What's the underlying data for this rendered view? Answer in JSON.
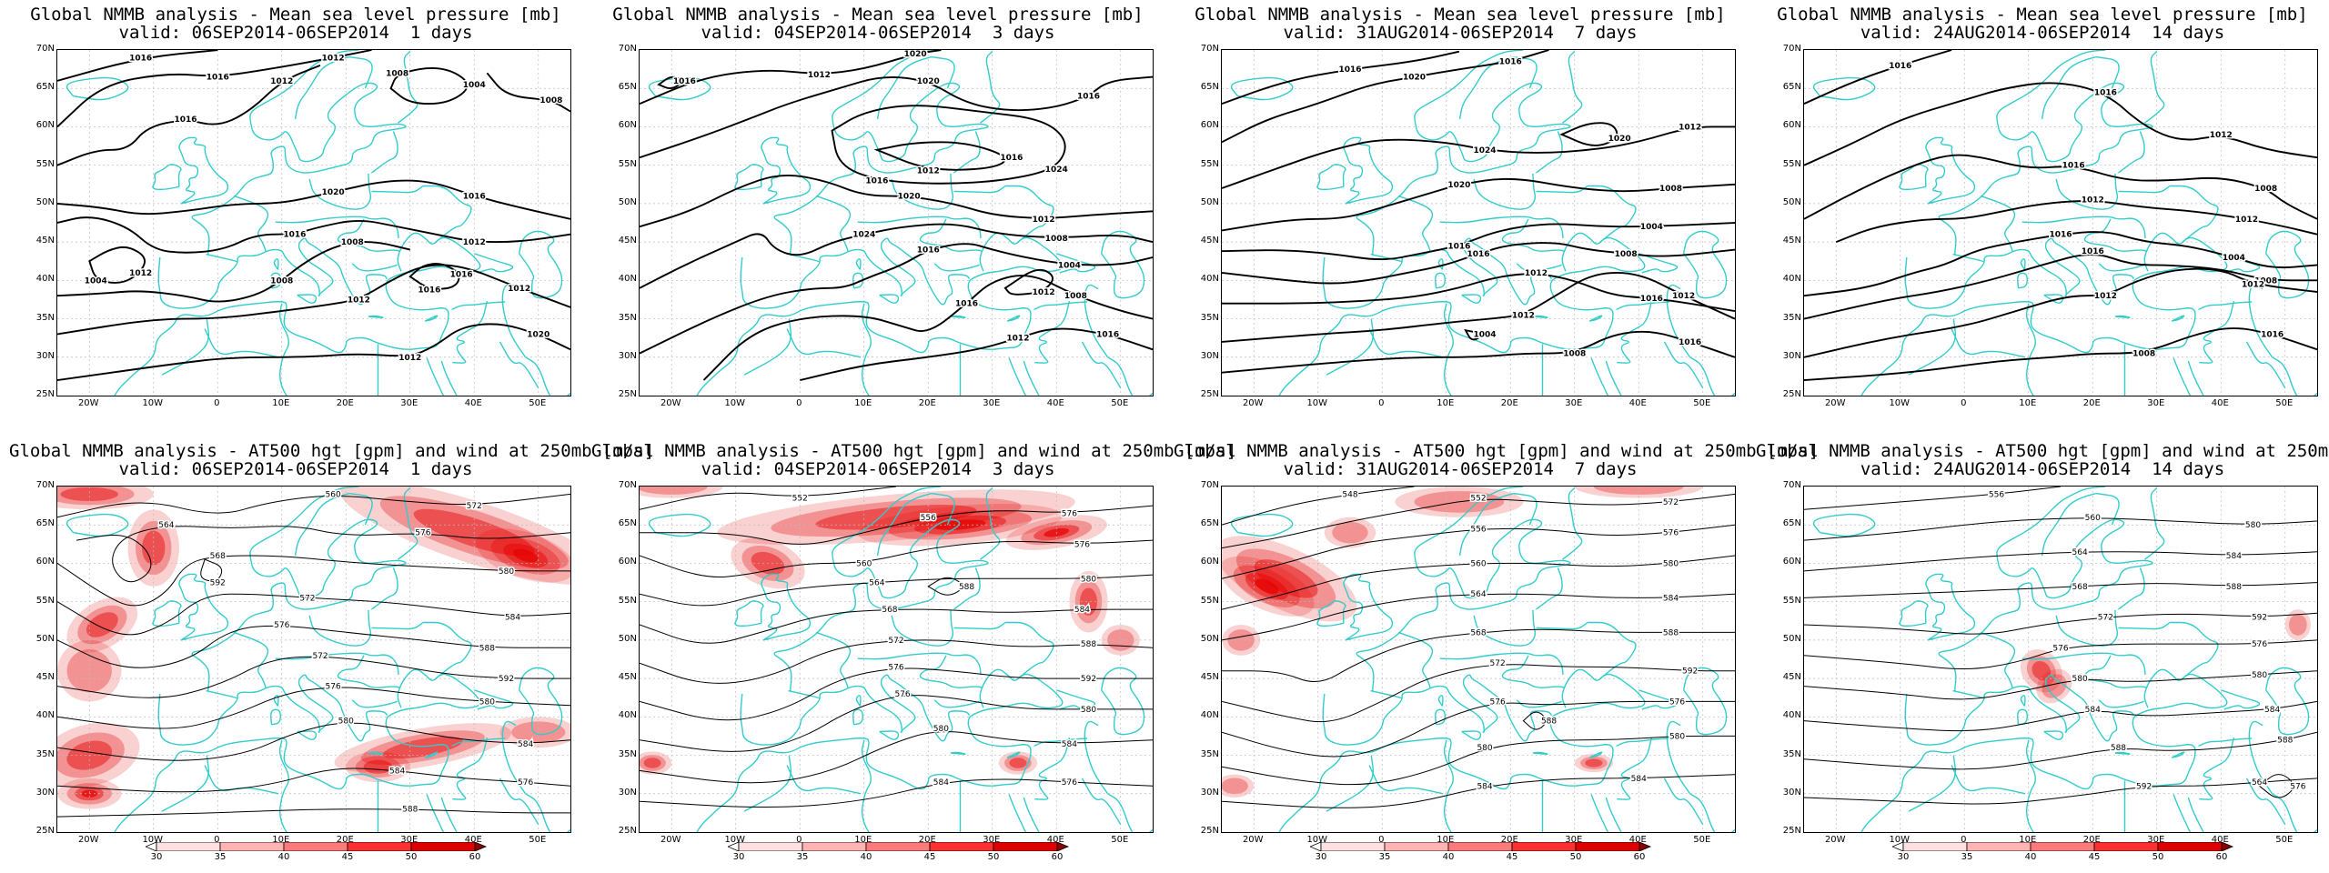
{
  "colors": {
    "coast": "#33cccc",
    "isobar": "#000000",
    "grid": "#bbbbbb",
    "jet": "#e60000"
  },
  "top_titles_line1": "Global NMMB analysis - Mean sea level pressure [mb]",
  "bottom_titles_line1": "Global NMMB analysis - AT500 hgt [gpm] and wind at 250mb [m/s]",
  "periods": [
    {
      "valid": "valid: 06SEP2014-06SEP2014  1 days"
    },
    {
      "valid": "valid: 04SEP2014-06SEP2014  3 days"
    },
    {
      "valid": "valid: 31AUG2014-06SEP2014  7 days"
    },
    {
      "valid": "valid: 24AUG2014-06SEP2014  14 days"
    }
  ],
  "lat_labels": [
    "70N",
    "65N",
    "60N",
    "55N",
    "50N",
    "45N",
    "40N",
    "35N",
    "30N",
    "25N"
  ],
  "lon_labels": [
    "20W",
    "10W",
    "0",
    "10E",
    "20E",
    "30E",
    "40E",
    "50E"
  ],
  "colorbar_labels": [
    "30",
    "35",
    "40",
    "45",
    "50",
    "60"
  ],
  "mslp_labels": [
    [
      "1016",
      "1016",
      "1016",
      "1020",
      "1016",
      "1012",
      "1008",
      "1012",
      "1016",
      "1012",
      "1004",
      "1008",
      "1012",
      "1016",
      "1020",
      "1008"
    ],
    [
      "1012",
      "1016",
      "1020",
      "1024",
      "1016",
      "1020",
      "1024",
      "1016",
      "1016",
      "1012",
      "1012",
      "1008",
      "1004",
      "1008",
      "1012",
      "1016"
    ],
    [
      "1016",
      "1020",
      "1024",
      "1020",
      "1020",
      "1016",
      "1016",
      "1012",
      "1012",
      "1008",
      "1004",
      "1008",
      "1016",
      "1012",
      "1016",
      "1012"
    ],
    [
      "1016",
      "1016",
      "1016",
      "1012",
      "1016",
      "1016",
      "1012",
      "1008",
      "1012",
      "1004",
      "1008",
      "1012",
      "1016",
      "1016",
      "1016",
      "1012"
    ]
  ],
  "hgt_labels": [
    [
      "560",
      "564",
      "568",
      "572",
      "576",
      "572",
      "576",
      "580",
      "584",
      "588",
      "592",
      "580",
      "584",
      "576",
      "560",
      "568"
    ],
    [
      "552",
      "556",
      "560",
      "564",
      "568",
      "572",
      "576",
      "576",
      "580",
      "584",
      "588",
      "592",
      "580",
      "584",
      "576",
      "556"
    ],
    [
      "548",
      "552",
      "556",
      "560",
      "564",
      "568",
      "572",
      "576",
      "580",
      "584",
      "588",
      "592",
      "576",
      "580",
      "584",
      "560"
    ],
    [
      "556",
      "560",
      "564",
      "568",
      "572",
      "576",
      "580",
      "584",
      "588",
      "592",
      "576",
      "580",
      "584",
      "588",
      "564",
      "568"
    ]
  ]
}
